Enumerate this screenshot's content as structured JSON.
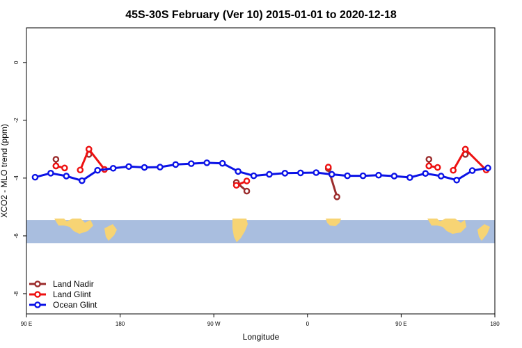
{
  "chart_data": {
    "type": "line",
    "title": "45S-30S February (Ver 10)   2015-01-01 to 2020-12-18",
    "xlabel": "Longitude",
    "ylabel": "XCO2 - MLO trend (ppm)",
    "xlim": [
      -90,
      180
    ],
    "ylim": [
      -8.7,
      1.2
    ],
    "x_ticks": [
      {
        "value": -90,
        "label": "90 E"
      },
      {
        "value": -36,
        "label": "180"
      },
      {
        "value": 18,
        "label": "90 W"
      },
      {
        "value": 72,
        "label": "0"
      },
      {
        "value": 126,
        "label": "90 E"
      },
      {
        "value": 180,
        "label": "180"
      }
    ],
    "y_ticks": [
      {
        "value": 0,
        "label": "0"
      },
      {
        "value": -2,
        "label": "-2"
      },
      {
        "value": -4,
        "label": "-4"
      },
      {
        "value": -6,
        "label": "-6"
      },
      {
        "value": -8,
        "label": "-8"
      }
    ],
    "grid": false,
    "legend_position": "bottom-left",
    "map_band": {
      "y_range": [
        -5.45,
        -6.25
      ],
      "ocean_color": "#a9bedf",
      "land_color": "#f7d474"
    },
    "series": [
      {
        "name": "Land Nadir",
        "color": "#9b2c2c",
        "segments": [
          [
            {
              "x": -73,
              "y": -3.35
            },
            {
              "x": -73,
              "y": -3.58
            }
          ],
          [
            {
              "x": -54,
              "y": -3.18
            },
            {
              "x": -54,
              "y": -3.0
            }
          ],
          [
            {
              "x": 31,
              "y": -4.15
            },
            {
              "x": 37,
              "y": -4.45
            }
          ],
          [
            {
              "x": 84,
              "y": -3.67
            },
            {
              "x": 89,
              "y": -4.65
            }
          ],
          [
            {
              "x": 142,
              "y": -3.35
            },
            {
              "x": 142,
              "y": -3.58
            }
          ],
          [
            {
              "x": 163,
              "y": -3.18
            },
            {
              "x": 163,
              "y": -3.0
            }
          ]
        ]
      },
      {
        "name": "Land Glint",
        "color": "#ee1111",
        "segments": [
          [
            {
              "x": -73,
              "y": -3.58
            },
            {
              "x": -68,
              "y": -3.65
            }
          ],
          [
            {
              "x": -59,
              "y": -3.72
            },
            {
              "x": -54,
              "y": -3.0
            },
            {
              "x": -45,
              "y": -3.7
            }
          ],
          [
            {
              "x": 31,
              "y": -4.25
            },
            {
              "x": 37,
              "y": -4.1
            }
          ],
          [
            {
              "x": 84,
              "y": -3.62
            }
          ],
          [
            {
              "x": 142,
              "y": -3.58
            },
            {
              "x": 147,
              "y": -3.63
            }
          ],
          [
            {
              "x": 156,
              "y": -3.73
            },
            {
              "x": 163,
              "y": -3.0
            },
            {
              "x": 175,
              "y": -3.72
            }
          ]
        ]
      },
      {
        "name": "Ocean Glint",
        "color": "#0b12e6",
        "segments": [
          [
            {
              "x": -85,
              "y": -3.97
            },
            {
              "x": -76,
              "y": -3.83
            },
            {
              "x": -67,
              "y": -3.93
            },
            {
              "x": -58,
              "y": -4.09
            },
            {
              "x": -49,
              "y": -3.73
            },
            {
              "x": -40,
              "y": -3.66
            },
            {
              "x": -31,
              "y": -3.6
            },
            {
              "x": -22,
              "y": -3.63
            },
            {
              "x": -13,
              "y": -3.62
            },
            {
              "x": -4,
              "y": -3.53
            },
            {
              "x": 5,
              "y": -3.5
            },
            {
              "x": 14,
              "y": -3.47
            },
            {
              "x": 23,
              "y": -3.49
            },
            {
              "x": 32,
              "y": -3.77
            },
            {
              "x": 41,
              "y": -3.92
            },
            {
              "x": 50,
              "y": -3.87
            },
            {
              "x": 59,
              "y": -3.83
            },
            {
              "x": 68,
              "y": -3.82
            },
            {
              "x": 77,
              "y": -3.81
            },
            {
              "x": 86,
              "y": -3.87
            },
            {
              "x": 95,
              "y": -3.92
            },
            {
              "x": 104,
              "y": -3.92
            },
            {
              "x": 113,
              "y": -3.9
            },
            {
              "x": 122,
              "y": -3.93
            },
            {
              "x": 131,
              "y": -3.98
            },
            {
              "x": 140,
              "y": -3.84
            },
            {
              "x": 149,
              "y": -3.93
            },
            {
              "x": 158,
              "y": -4.07
            },
            {
              "x": 167,
              "y": -3.74
            },
            {
              "x": 176,
              "y": -3.65
            }
          ]
        ]
      }
    ]
  }
}
